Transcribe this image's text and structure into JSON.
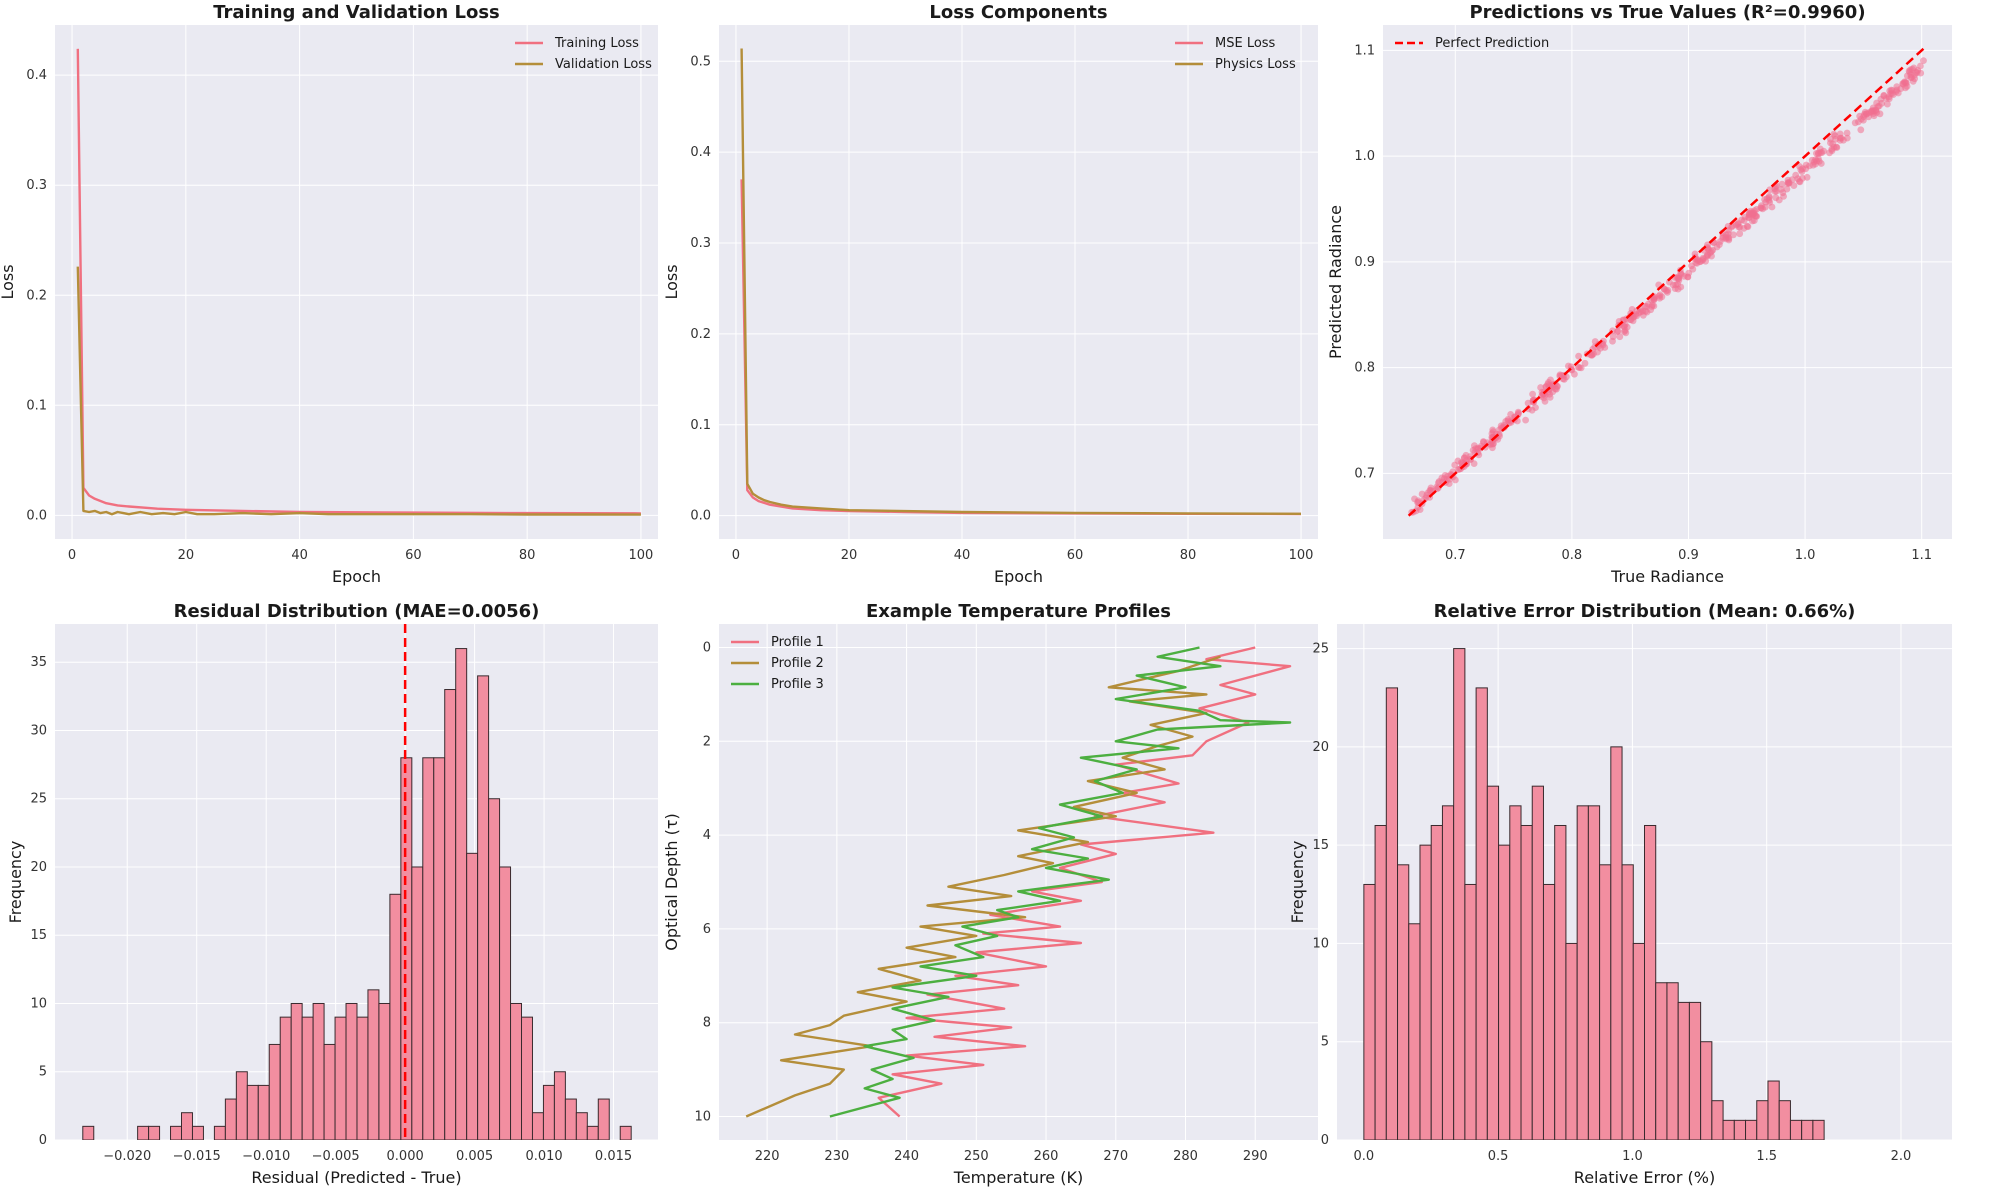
{
  "chart_data": [
    {
      "id": "p1",
      "type": "line",
      "title": "Training and Validation Loss",
      "xlabel": "Epoch",
      "ylabel": "Loss",
      "xlim": [
        -3,
        103
      ],
      "ylim": [
        -0.0215,
        0.4456
      ],
      "xticks": [
        0,
        20,
        40,
        60,
        80,
        100
      ],
      "yticks": [
        0.0,
        0.1,
        0.2,
        0.3,
        0.4
      ],
      "legend_loc": "upper right",
      "series": [
        {
          "name": "Training Loss",
          "color": "#f07080",
          "points": [
            [
              1,
              0.424
            ],
            [
              2,
              0.025
            ],
            [
              3,
              0.018
            ],
            [
              4,
              0.015
            ],
            [
              5,
              0.013
            ],
            [
              6,
              0.011
            ],
            [
              8,
              0.009
            ],
            [
              10,
              0.008
            ],
            [
              15,
              0.006
            ],
            [
              20,
              0.005
            ],
            [
              30,
              0.004
            ],
            [
              40,
              0.003
            ],
            [
              60,
              0.0025
            ],
            [
              80,
              0.002
            ],
            [
              100,
              0.0018
            ]
          ]
        },
        {
          "name": "Validation Loss",
          "color": "#b48e3a",
          "points": [
            [
              1,
              0.226
            ],
            [
              2,
              0.004
            ],
            [
              3,
              0.003
            ],
            [
              4,
              0.004
            ],
            [
              5,
              0.002
            ],
            [
              6,
              0.003
            ],
            [
              7,
              0.001
            ],
            [
              8,
              0.003
            ],
            [
              9,
              0.002
            ],
            [
              10,
              0.001
            ],
            [
              12,
              0.003
            ],
            [
              14,
              0.001
            ],
            [
              16,
              0.002
            ],
            [
              18,
              0.001
            ],
            [
              20,
              0.003
            ],
            [
              22,
              0.001
            ],
            [
              25,
              0.001
            ],
            [
              30,
              0.002
            ],
            [
              35,
              0.001
            ],
            [
              40,
              0.002
            ],
            [
              45,
              0.001
            ],
            [
              50,
              0.001
            ],
            [
              60,
              0.001
            ],
            [
              70,
              0.001
            ],
            [
              80,
              0.0008
            ],
            [
              90,
              0.0008
            ],
            [
              100,
              0.0007
            ]
          ]
        }
      ]
    },
    {
      "id": "p2",
      "type": "line",
      "title": "Loss Components",
      "xlabel": "Epoch",
      "ylabel": "Loss",
      "xlim": [
        -3,
        103
      ],
      "ylim": [
        -0.0257,
        0.5399
      ],
      "xticks": [
        0,
        20,
        40,
        60,
        80,
        100
      ],
      "yticks": [
        0.0,
        0.1,
        0.2,
        0.3,
        0.4,
        0.5
      ],
      "legend_loc": "upper right",
      "series": [
        {
          "name": "MSE Loss",
          "color": "#f07080",
          "points": [
            [
              1,
              0.37
            ],
            [
              2,
              0.028
            ],
            [
              3,
              0.02
            ],
            [
              4,
              0.016
            ],
            [
              5,
              0.014
            ],
            [
              6,
              0.012
            ],
            [
              8,
              0.01
            ],
            [
              10,
              0.008
            ],
            [
              15,
              0.006
            ],
            [
              20,
              0.005
            ],
            [
              30,
              0.004
            ],
            [
              40,
              0.003
            ],
            [
              60,
              0.0025
            ],
            [
              80,
              0.002
            ],
            [
              100,
              0.0018
            ]
          ]
        },
        {
          "name": "Physics Loss",
          "color": "#b48e3a",
          "points": [
            [
              1,
              0.514
            ],
            [
              2,
              0.035
            ],
            [
              3,
              0.024
            ],
            [
              4,
              0.02
            ],
            [
              5,
              0.017
            ],
            [
              6,
              0.015
            ],
            [
              8,
              0.012
            ],
            [
              10,
              0.01
            ],
            [
              15,
              0.008
            ],
            [
              20,
              0.006
            ],
            [
              30,
              0.005
            ],
            [
              40,
              0.004
            ],
            [
              60,
              0.003
            ],
            [
              80,
              0.0025
            ],
            [
              100,
              0.002
            ]
          ]
        }
      ]
    },
    {
      "id": "p3",
      "type": "scatter",
      "title": "Predictions vs True Values (R²=0.9960)",
      "xlabel": "True Radiance",
      "ylabel": "Predicted Radiance",
      "xlim": [
        0.638,
        1.126
      ],
      "ylim": [
        0.638,
        1.124
      ],
      "xticks": [
        0.7,
        0.8,
        0.9,
        1.0,
        1.1
      ],
      "yticks": [
        0.7,
        0.8,
        0.9,
        1.0,
        1.1
      ],
      "legend_loc": "upper left",
      "reference_line": {
        "name": "Perfect Prediction",
        "color": "#ff0000",
        "from": [
          0.66,
          0.66
        ],
        "to": [
          1.104,
          1.104
        ]
      },
      "scatter": {
        "color": "#f07090",
        "n": 500,
        "x_range": [
          0.662,
          1.104
        ],
        "slope": 0.951,
        "intercept": 0.037,
        "noise": 0.005
      }
    },
    {
      "id": "p4",
      "type": "bar",
      "title": "Residual Distribution (MAE=0.0056)",
      "xlabel": "Residual (Predicted - True)",
      "ylabel": "Frequency",
      "xlim": [
        -0.0252,
        0.0182
      ],
      "ylim": [
        0,
        37.8
      ],
      "xticks": [
        -0.02,
        -0.015,
        -0.01,
        -0.005,
        0.0,
        0.005,
        0.01,
        0.015
      ],
      "xtick_labels": [
        "−0.020",
        "−0.015",
        "−0.010",
        "−0.005",
        "0.000",
        "0.005",
        "0.010",
        "0.015"
      ],
      "yticks": [
        0,
        5,
        10,
        15,
        20,
        25,
        30,
        35
      ],
      "bin_start": -0.0232,
      "bin_width": 0.0007894,
      "values": [
        1,
        0,
        0,
        0,
        0,
        1,
        1,
        0,
        1,
        2,
        1,
        0,
        1,
        3,
        5,
        4,
        4,
        7,
        9,
        10,
        9,
        10,
        7,
        9,
        10,
        9,
        11,
        10,
        18,
        28,
        20,
        28,
        28,
        33,
        36,
        21,
        34,
        25,
        20,
        10,
        9,
        2,
        4,
        5,
        3,
        2,
        1,
        3,
        0,
        1
      ],
      "vline": {
        "x": 0.0,
        "color": "#ff0000"
      }
    },
    {
      "id": "p5",
      "type": "line",
      "title": "Example Temperature Profiles",
      "xlabel": "Temperature (K)",
      "ylabel": "Optical Depth (τ)",
      "xlim": [
        213.1,
        299.0
      ],
      "ylim": [
        10.5,
        -0.5
      ],
      "y_inverted": true,
      "xticks": [
        220,
        230,
        240,
        250,
        260,
        270,
        280,
        290
      ],
      "yticks": [
        0,
        2,
        4,
        6,
        8,
        10
      ],
      "legend_loc": "upper left",
      "series": [
        {
          "name": "Profile 1",
          "color": "#f07080",
          "points": [
            [
              290,
              0
            ],
            [
              283,
              0.25
            ],
            [
              295,
              0.4
            ],
            [
              285,
              0.8
            ],
            [
              290,
              1.0
            ],
            [
              282,
              1.3
            ],
            [
              289,
              1.6
            ],
            [
              283,
              2.0
            ],
            [
              281,
              2.3
            ],
            [
              270,
              2.5
            ],
            [
              279,
              2.9
            ],
            [
              271,
              3.1
            ],
            [
              277,
              3.3
            ],
            [
              267,
              3.6
            ],
            [
              284,
              3.95
            ],
            [
              265,
              4.2
            ],
            [
              270,
              4.4
            ],
            [
              262,
              4.7
            ],
            [
              268,
              5.0
            ],
            [
              258,
              5.2
            ],
            [
              265,
              5.4
            ],
            [
              252,
              5.7
            ],
            [
              262,
              5.95
            ],
            [
              251,
              6.1
            ],
            [
              265,
              6.3
            ],
            [
              250,
              6.5
            ],
            [
              260,
              6.8
            ],
            [
              247,
              7.0
            ],
            [
              256,
              7.2
            ],
            [
              243,
              7.4
            ],
            [
              254,
              7.7
            ],
            [
              240,
              7.9
            ],
            [
              255,
              8.1
            ],
            [
              244,
              8.3
            ],
            [
              257,
              8.5
            ],
            [
              240,
              8.7
            ],
            [
              251,
              8.9
            ],
            [
              238,
              9.1
            ],
            [
              245,
              9.3
            ],
            [
              236,
              9.6
            ],
            [
              239,
              10.0
            ]
          ]
        },
        {
          "name": "Profile 2",
          "color": "#b48e3a",
          "points": [
            [
              285,
              0.2
            ],
            [
              279,
              0.5
            ],
            [
              269,
              0.85
            ],
            [
              283,
              1.0
            ],
            [
              272,
              1.15
            ],
            [
              283,
              1.4
            ],
            [
              275,
              1.65
            ],
            [
              281,
              1.9
            ],
            [
              276,
              2.1
            ],
            [
              271,
              2.35
            ],
            [
              277,
              2.6
            ],
            [
              266,
              2.85
            ],
            [
              273,
              3.1
            ],
            [
              264,
              3.4
            ],
            [
              270,
              3.6
            ],
            [
              256,
              3.9
            ],
            [
              266,
              4.15
            ],
            [
              256,
              4.45
            ],
            [
              261,
              4.6
            ],
            [
              254,
              4.85
            ],
            [
              246,
              5.1
            ],
            [
              255,
              5.3
            ],
            [
              243,
              5.5
            ],
            [
              257,
              5.75
            ],
            [
              242,
              5.95
            ],
            [
              250,
              6.15
            ],
            [
              240,
              6.4
            ],
            [
              247,
              6.6
            ],
            [
              236,
              6.85
            ],
            [
              242,
              7.1
            ],
            [
              233,
              7.35
            ],
            [
              240,
              7.55
            ],
            [
              231,
              7.85
            ],
            [
              229,
              8.05
            ],
            [
              224,
              8.25
            ],
            [
              235,
              8.5
            ],
            [
              222,
              8.8
            ],
            [
              231,
              9.0
            ],
            [
              229,
              9.3
            ],
            [
              224,
              9.55
            ],
            [
              217,
              10.0
            ]
          ]
        },
        {
          "name": "Profile 3",
          "color": "#4caf40",
          "points": [
            [
              282,
              0
            ],
            [
              276,
              0.2
            ],
            [
              285,
              0.4
            ],
            [
              273,
              0.6
            ],
            [
              280,
              0.85
            ],
            [
              270,
              1.1
            ],
            [
              282,
              1.35
            ],
            [
              285,
              1.55
            ],
            [
              295,
              1.6
            ],
            [
              276,
              1.75
            ],
            [
              270,
              2.0
            ],
            [
              279,
              2.15
            ],
            [
              265,
              2.35
            ],
            [
              273,
              2.6
            ],
            [
              267,
              2.85
            ],
            [
              271,
              3.1
            ],
            [
              262,
              3.35
            ],
            [
              268,
              3.6
            ],
            [
              259,
              3.85
            ],
            [
              264,
              4.05
            ],
            [
              258,
              4.3
            ],
            [
              266,
              4.5
            ],
            [
              260,
              4.7
            ],
            [
              269,
              4.95
            ],
            [
              256,
              5.2
            ],
            [
              262,
              5.4
            ],
            [
              253,
              5.6
            ],
            [
              256,
              5.75
            ],
            [
              248,
              5.95
            ],
            [
              253,
              6.15
            ],
            [
              247,
              6.35
            ],
            [
              251,
              6.6
            ],
            [
              242,
              6.8
            ],
            [
              250,
              7.0
            ],
            [
              238,
              7.25
            ],
            [
              246,
              7.45
            ],
            [
              238,
              7.7
            ],
            [
              244,
              7.95
            ],
            [
              238,
              8.15
            ],
            [
              240,
              8.35
            ],
            [
              234,
              8.5
            ],
            [
              241,
              8.75
            ],
            [
              235,
              9.0
            ],
            [
              238,
              9.2
            ],
            [
              234,
              9.4
            ],
            [
              239,
              9.6
            ],
            [
              229,
              10.0
            ]
          ]
        }
      ]
    },
    {
      "id": "p6",
      "type": "bar",
      "title": "Relative Error Distribution (Mean: 0.66%)",
      "xlabel": "Relative Error (%)",
      "ylabel": "Frequency",
      "xlim": [
        -0.1,
        2.19
      ],
      "ylim": [
        0,
        26.25
      ],
      "xticks": [
        0.0,
        0.5,
        1.0,
        1.5,
        2.0
      ],
      "xtick_labels": [
        "0.0",
        "0.5",
        "1.0",
        "1.5",
        "2.0"
      ],
      "yticks": [
        0,
        5,
        10,
        15,
        20,
        25
      ],
      "bin_start": 0.0,
      "bin_width": 0.0418,
      "values": [
        13,
        16,
        23,
        14,
        11,
        15,
        16,
        17,
        25,
        13,
        23,
        18,
        15,
        17,
        16,
        18,
        13,
        16,
        10,
        17,
        17,
        14,
        20,
        14,
        10,
        16,
        8,
        8,
        7,
        7,
        5,
        2,
        1,
        1,
        1,
        2,
        3,
        2,
        1,
        1,
        1,
        0
      ]
    }
  ]
}
